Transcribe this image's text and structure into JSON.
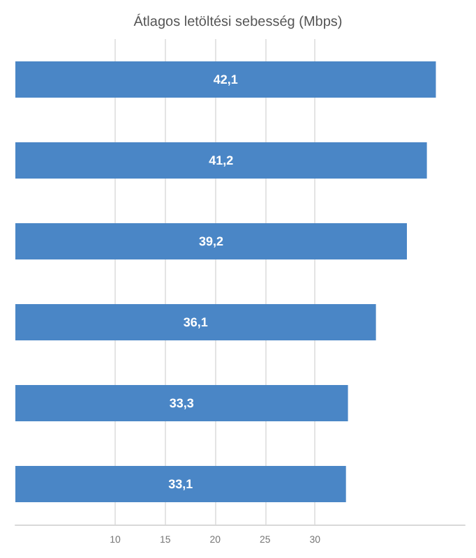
{
  "chart_data": {
    "type": "bar",
    "orientation": "horizontal",
    "title": "Átlagos letöltési sebesség (Mbps)",
    "categories": [
      null,
      null,
      null,
      null,
      null,
      null
    ],
    "values": [
      42.1,
      41.2,
      39.2,
      36.1,
      33.3,
      33.1
    ],
    "value_labels": [
      "42,1",
      "41,2",
      "39,2",
      "36,1",
      "33,3",
      "33,1"
    ],
    "color": "#4a86c6",
    "xlim": [
      0,
      45
    ],
    "xticks": [
      10,
      15,
      20,
      25,
      30
    ],
    "grid": "x"
  }
}
